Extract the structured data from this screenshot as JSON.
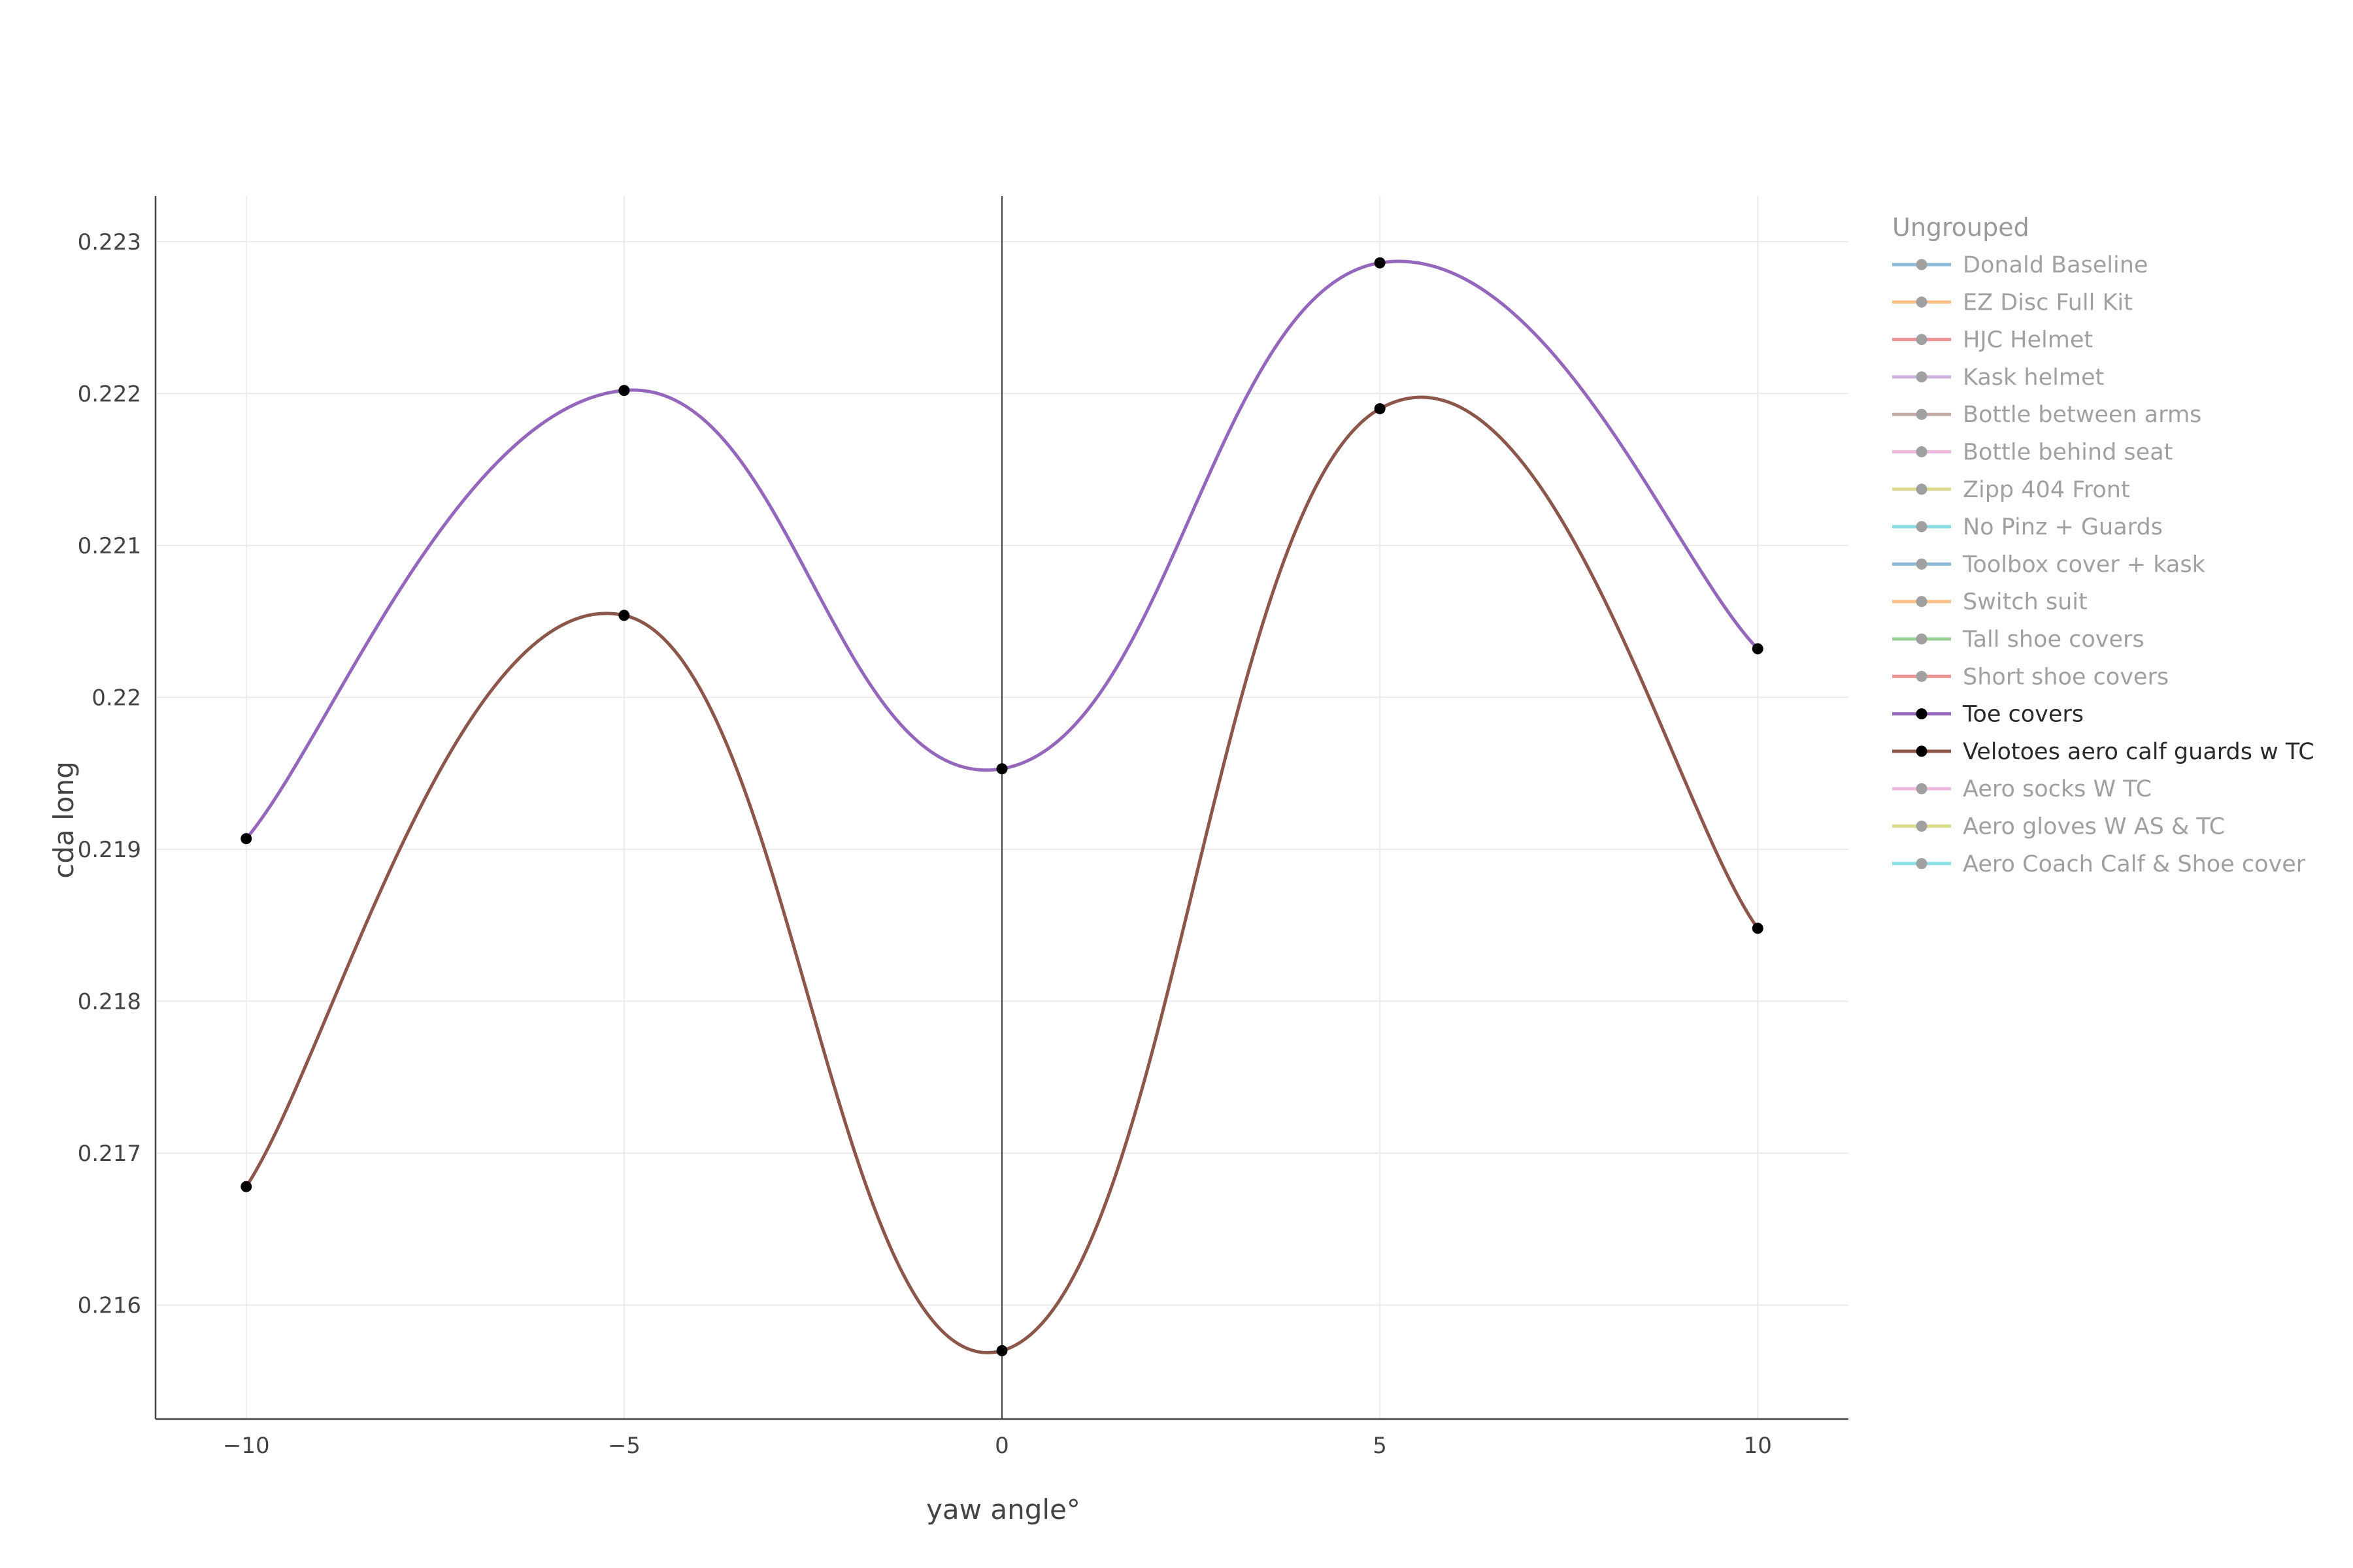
{
  "chart_data": {
    "type": "line",
    "xlabel": "yaw angle°",
    "ylabel": "cda long",
    "xlim": [
      -11.2,
      11.2
    ],
    "ylim": [
      0.21525,
      0.2233
    ],
    "x_ticks": [
      -10,
      -5,
      0,
      5,
      10
    ],
    "x_tick_labels": [
      "−10",
      "−5",
      "0",
      "5",
      "10"
    ],
    "y_ticks": [
      0.216,
      0.217,
      0.218,
      0.219,
      0.22,
      0.221,
      0.222,
      0.223
    ],
    "y_tick_labels": [
      "0.216",
      "0.217",
      "0.218",
      "0.219",
      "0.22",
      "0.221",
      "0.222",
      "0.223"
    ],
    "grid": true,
    "legend_position": "right",
    "legend_title": "Ungrouped",
    "legend": [
      {
        "name": "Donald Baseline",
        "color": "#1f77b4",
        "visible": false
      },
      {
        "name": "EZ Disc Full Kit",
        "color": "#ff7f0e",
        "visible": false
      },
      {
        "name": "HJC Helmet",
        "color": "#d62728",
        "visible": false
      },
      {
        "name": "Kask helmet",
        "color": "#9467bd",
        "visible": false
      },
      {
        "name": "Bottle between arms",
        "color": "#8c564b",
        "visible": false
      },
      {
        "name": "Bottle behind seat",
        "color": "#e377c2",
        "visible": false
      },
      {
        "name": "Zipp 404 Front",
        "color": "#bcbd22",
        "visible": false
      },
      {
        "name": "No Pinz + Guards",
        "color": "#17becf",
        "visible": false
      },
      {
        "name": "Toolbox cover + kask",
        "color": "#1f77b4",
        "visible": false
      },
      {
        "name": "Switch suit",
        "color": "#ff7f0e",
        "visible": false
      },
      {
        "name": "Tall shoe covers",
        "color": "#2ca02c",
        "visible": false
      },
      {
        "name": "Short shoe covers",
        "color": "#d62728",
        "visible": false
      },
      {
        "name": "Toe covers",
        "color": "#9467bd",
        "visible": true
      },
      {
        "name": "Velotoes aero calf guards w TC",
        "color": "#8c564b",
        "visible": true
      },
      {
        "name": "Aero socks W TC",
        "color": "#e377c2",
        "visible": false
      },
      {
        "name": "Aero gloves W AS & TC",
        "color": "#bcbd22",
        "visible": false
      },
      {
        "name": "Aero Coach Calf & Shoe cover",
        "color": "#17becf",
        "visible": false
      }
    ],
    "x": [
      -10,
      -5,
      0,
      5,
      10
    ],
    "series": [
      {
        "name": "Toe covers",
        "color": "#9467bd",
        "values": [
          0.21907,
          0.22202,
          0.21953,
          0.22286,
          0.22032
        ]
      },
      {
        "name": "Velotoes aero calf guards w TC",
        "color": "#8c564b",
        "values": [
          0.21678,
          0.22054,
          0.2157,
          0.2219,
          0.21848
        ]
      }
    ]
  }
}
